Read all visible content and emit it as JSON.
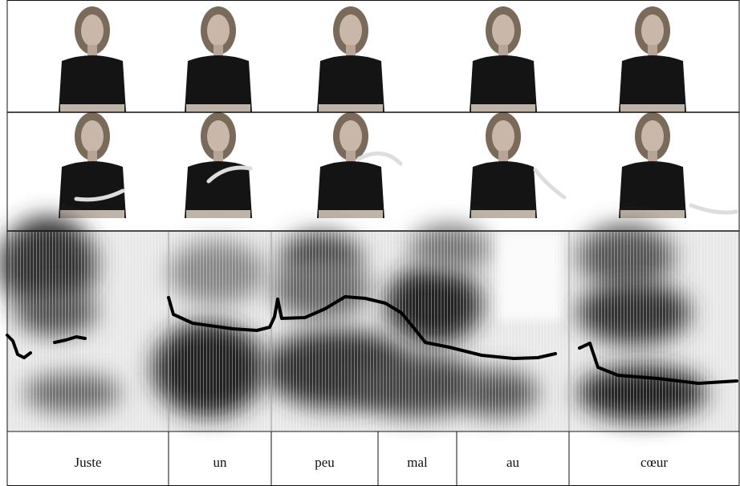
{
  "words": [
    "Juste",
    "un",
    "peu",
    "mal",
    "au",
    "cœur"
  ]
}
